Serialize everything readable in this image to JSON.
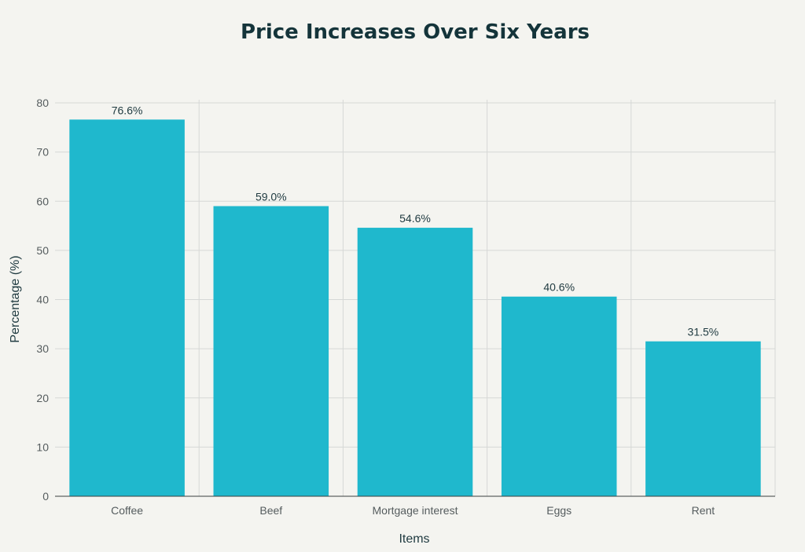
{
  "chart_data": {
    "type": "bar",
    "title": "Price Increases Over Six Years",
    "xlabel": "Items",
    "ylabel": "Percentage (%)",
    "categories": [
      "Coffee",
      "Beef",
      "Mortgage interest",
      "Eggs",
      "Rent"
    ],
    "values": [
      76.6,
      59.0,
      54.6,
      40.6,
      31.5
    ],
    "data_labels": [
      "76.6%",
      "59.0%",
      "54.6%",
      "40.6%",
      "31.5%"
    ],
    "y_ticks": [
      0,
      10,
      20,
      30,
      40,
      50,
      60,
      70,
      80
    ],
    "ylim": [
      0,
      80
    ],
    "grid": true,
    "legend": "none",
    "bar_color": "#1fb8cd"
  }
}
